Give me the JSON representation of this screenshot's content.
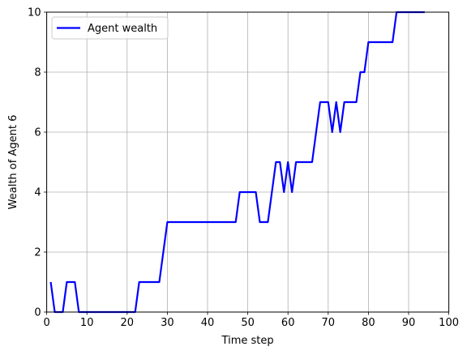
{
  "chart_data": {
    "type": "line",
    "title": "",
    "xlabel": "Time step",
    "ylabel": "Wealth of Agent 6",
    "xlim": [
      0,
      100
    ],
    "ylim": [
      0,
      10
    ],
    "xticks": [
      0,
      10,
      20,
      30,
      40,
      50,
      60,
      70,
      80,
      90,
      100
    ],
    "yticks": [
      0,
      2,
      4,
      6,
      8,
      10
    ],
    "grid": true,
    "legend_position": "top-left",
    "series": [
      {
        "name": "Agent wealth",
        "color": "#0000ff",
        "x": [
          1,
          2,
          3,
          4,
          5,
          6,
          7,
          8,
          9,
          10,
          11,
          12,
          13,
          14,
          15,
          16,
          17,
          18,
          19,
          20,
          21,
          22,
          23,
          24,
          25,
          26,
          27,
          28,
          29,
          30,
          31,
          32,
          33,
          34,
          35,
          36,
          37,
          38,
          39,
          40,
          41,
          42,
          43,
          44,
          45,
          46,
          47,
          48,
          49,
          50,
          51,
          52,
          53,
          54,
          55,
          56,
          57,
          58,
          59,
          60,
          61,
          62,
          63,
          64,
          65,
          66,
          67,
          68,
          69,
          70,
          71,
          72,
          73,
          74,
          75,
          76,
          77,
          78,
          79,
          80,
          81,
          82,
          83,
          84,
          85,
          86,
          87,
          88,
          89,
          90,
          91,
          92,
          93,
          94
        ],
        "y": [
          1,
          0,
          0,
          0,
          1,
          1,
          1,
          0,
          0,
          0,
          0,
          0,
          0,
          0,
          0,
          0,
          0,
          0,
          0,
          0,
          0,
          0,
          1,
          1,
          1,
          1,
          1,
          1,
          2,
          3,
          3,
          3,
          3,
          3,
          3,
          3,
          3,
          3,
          3,
          3,
          3,
          3,
          3,
          3,
          3,
          3,
          3,
          4,
          4,
          4,
          4,
          4,
          3,
          3,
          3,
          4,
          5,
          5,
          4,
          5,
          4,
          5,
          5,
          5,
          5,
          5,
          6,
          7,
          7,
          7,
          6,
          7,
          6,
          7,
          7,
          7,
          7,
          8,
          8,
          9,
          9,
          9,
          9,
          9,
          9,
          9,
          10,
          10,
          10,
          10,
          10,
          10,
          10,
          10
        ]
      }
    ]
  }
}
